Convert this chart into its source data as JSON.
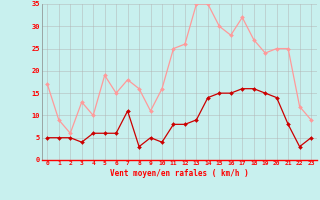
{
  "x": [
    0,
    1,
    2,
    3,
    4,
    5,
    6,
    7,
    8,
    9,
    10,
    11,
    12,
    13,
    14,
    15,
    16,
    17,
    18,
    19,
    20,
    21,
    22,
    23
  ],
  "vent_moyen": [
    5,
    5,
    5,
    4,
    6,
    6,
    6,
    11,
    3,
    5,
    4,
    8,
    8,
    9,
    14,
    15,
    15,
    16,
    16,
    15,
    14,
    8,
    3,
    5
  ],
  "vent_rafales": [
    17,
    9,
    6,
    13,
    10,
    19,
    15,
    18,
    16,
    11,
    16,
    25,
    26,
    35,
    35,
    30,
    28,
    32,
    27,
    24,
    25,
    25,
    12,
    9
  ],
  "xlabel": "Vent moyen/en rafales ( km/h )",
  "ylim": [
    0,
    35
  ],
  "yticks": [
    0,
    5,
    10,
    15,
    20,
    25,
    30,
    35
  ],
  "xticks": [
    0,
    1,
    2,
    3,
    4,
    5,
    6,
    7,
    8,
    9,
    10,
    11,
    12,
    13,
    14,
    15,
    16,
    17,
    18,
    19,
    20,
    21,
    22,
    23
  ],
  "bg_color": "#c8f0ee",
  "grid_color": "#b0b0b0",
  "moyen_color": "#cc0000",
  "rafales_color": "#ff9999"
}
